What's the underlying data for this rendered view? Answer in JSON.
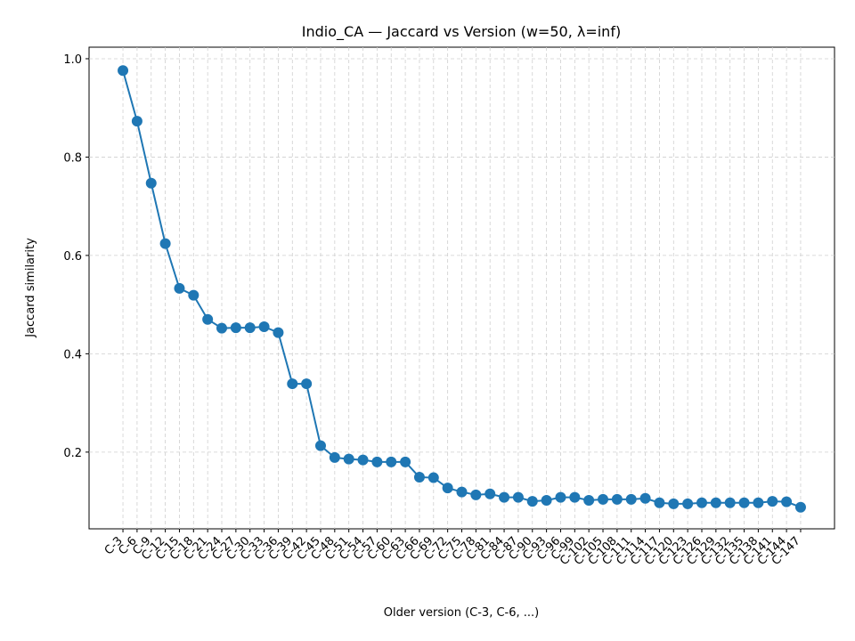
{
  "chart_data": {
    "type": "line",
    "title": "Indio_CA — Jaccard vs Version (w=50, λ=inf)",
    "xlabel": "Older version (C-3, C-6, ...)",
    "ylabel": "Jaccard similarity",
    "categories": [
      "C-3",
      "C-6",
      "C-9",
      "C-12",
      "C-15",
      "C-18",
      "C-21",
      "C-24",
      "C-27",
      "C-30",
      "C-33",
      "C-36",
      "C-39",
      "C-42",
      "C-45",
      "C-48",
      "C-51",
      "C-54",
      "C-57",
      "C-60",
      "C-63",
      "C-66",
      "C-69",
      "C-72",
      "C-75",
      "C-78",
      "C-81",
      "C-84",
      "C-87",
      "C-90",
      "C-93",
      "C-96",
      "C-99",
      "C-102",
      "C-105",
      "C-108",
      "C-111",
      "C-114",
      "C-117",
      "C-120",
      "C-123",
      "C-126",
      "C-129",
      "C-132",
      "C-135",
      "C-138",
      "C-141",
      "C-144",
      "C-147"
    ],
    "series": [
      {
        "name": "Jaccard similarity",
        "color": "#1f77b4",
        "values": [
          0.976,
          0.873,
          0.747,
          0.624,
          0.533,
          0.519,
          0.47,
          0.452,
          0.453,
          0.453,
          0.455,
          0.443,
          0.339,
          0.339,
          0.213,
          0.189,
          0.186,
          0.184,
          0.18,
          0.18,
          0.18,
          0.149,
          0.148,
          0.127,
          0.119,
          0.113,
          0.115,
          0.108,
          0.108,
          0.1,
          0.102,
          0.108,
          0.108,
          0.102,
          0.104,
          0.104,
          0.104,
          0.106,
          0.097,
          0.095,
          0.095,
          0.097,
          0.097,
          0.097,
          0.097,
          0.097,
          0.1,
          0.099,
          0.088
        ]
      }
    ],
    "ylim": [
      0.044,
      1.0235
    ],
    "yticks": [
      0.2,
      0.4,
      0.6,
      0.8,
      {
        "value": 1,
        "label": "1.0"
      }
    ],
    "grid": true
  }
}
